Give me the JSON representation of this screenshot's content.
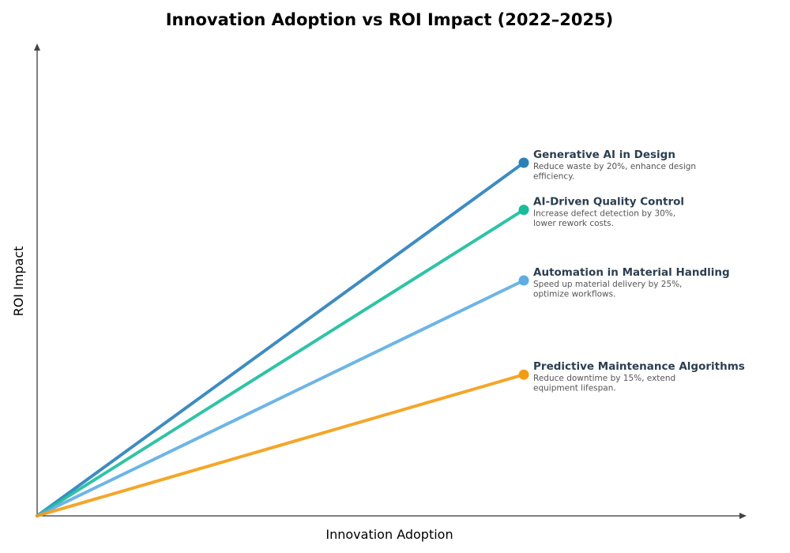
{
  "chart_data": {
    "type": "line",
    "title": "Innovation Adoption vs ROI Impact (2022–2025)",
    "xlabel": "Innovation Adoption",
    "ylabel": "ROI Impact",
    "xlim": [
      0,
      1
    ],
    "ylim": [
      0,
      1
    ],
    "grid": false,
    "ticks_shown": false,
    "series": [
      {
        "name": "Generative AI in Design",
        "description": [
          "Reduce waste by 20%, enhance design",
          "efficiency."
        ],
        "color": "#2980b9",
        "x": [
          0,
          0.686
        ],
        "y": [
          0,
          0.75
        ]
      },
      {
        "name": "AI-Driven Quality Control",
        "description": [
          "Increase defect detection by 30%,",
          "lower rework costs."
        ],
        "color": "#1abc9c",
        "x": [
          0,
          0.686
        ],
        "y": [
          0,
          0.65
        ]
      },
      {
        "name": "Automation in Material Handling",
        "description": [
          "Speed up material delivery by 25%,",
          "optimize workflows."
        ],
        "color": "#5dade2",
        "x": [
          0,
          0.686
        ],
        "y": [
          0,
          0.5
        ]
      },
      {
        "name": "Predictive Maintenance Algorithms",
        "description": [
          "Reduce downtime by 15%, extend",
          "equipment lifespan."
        ],
        "color": "#f39c12",
        "x": [
          0,
          0.686
        ],
        "y": [
          0,
          0.3
        ]
      }
    ]
  }
}
